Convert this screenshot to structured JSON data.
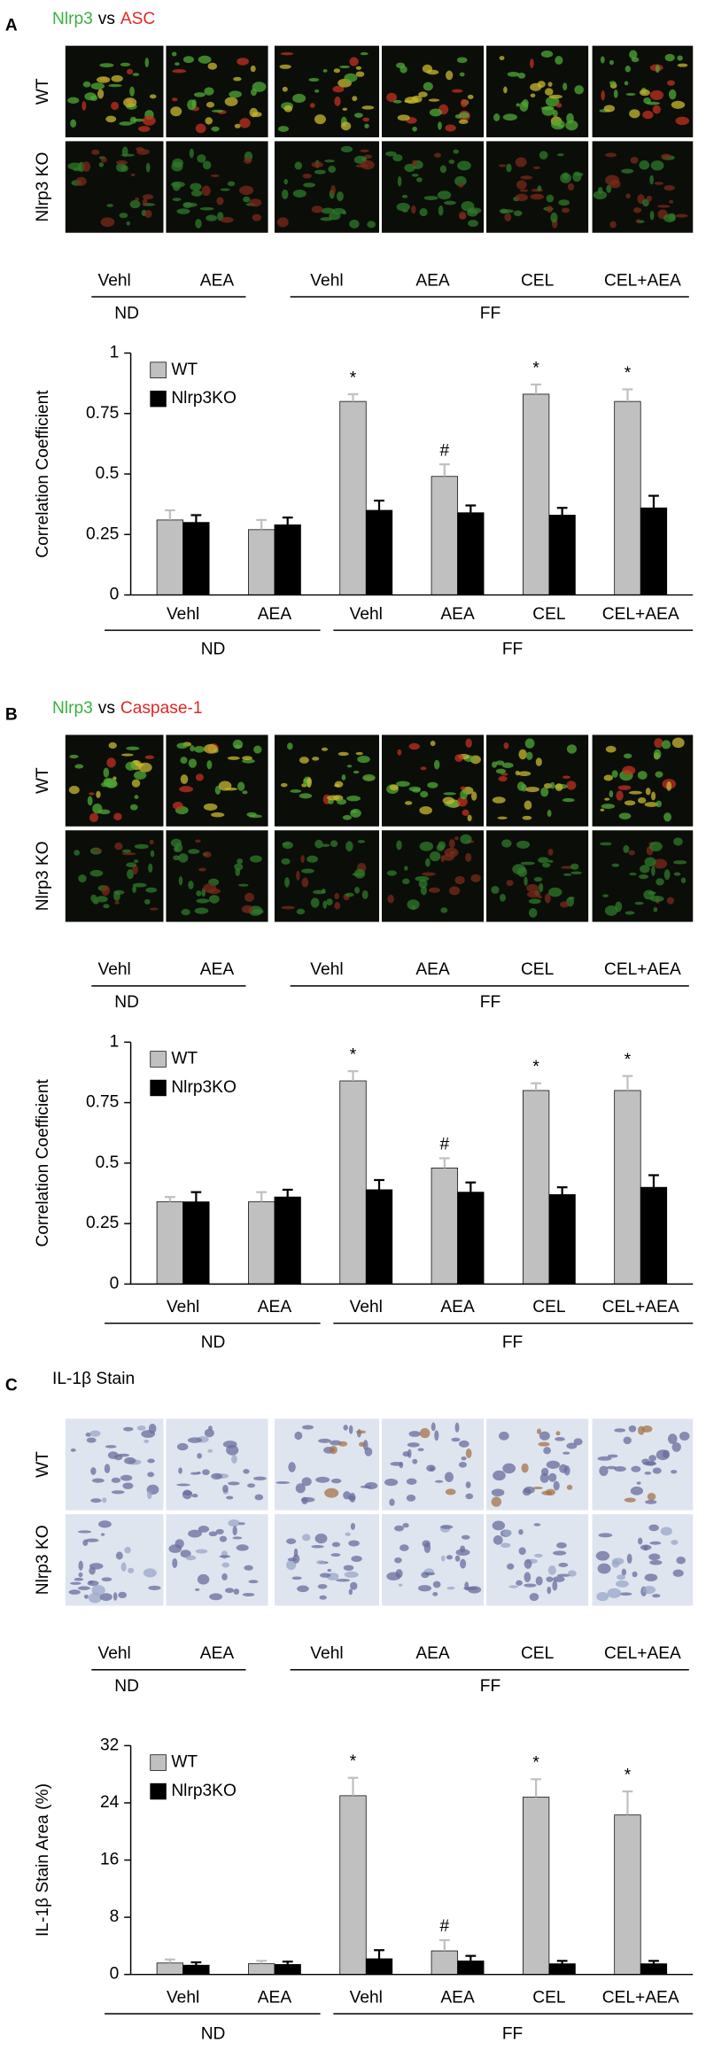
{
  "panels": [
    {
      "letter": "A",
      "title": [
        "Nlrp3",
        "vs",
        "ASC"
      ],
      "title_colors": [
        "#3cb043",
        "#000000",
        "#e32626"
      ],
      "row_labels": [
        "WT",
        "Nlrp3 KO"
      ],
      "image_labels": [
        "Vehl",
        "AEA",
        "Vehl",
        "AEA",
        "CEL",
        "CEL+AEA"
      ],
      "groups": [
        "ND",
        "FF"
      ]
    },
    {
      "letter": "B",
      "title": [
        "Nlrp3",
        "vs",
        "Caspase-1"
      ],
      "title_colors": [
        "#3cb043",
        "#000000",
        "#e32626"
      ],
      "row_labels": [
        "WT",
        "Nlrp3 KO"
      ],
      "image_labels": [
        "Vehl",
        "AEA",
        "Vehl",
        "AEA",
        "CEL",
        "CEL+AEA"
      ],
      "groups": [
        "ND",
        "FF"
      ]
    },
    {
      "letter": "C",
      "title": [
        "IL-1β Stain"
      ],
      "title_colors": [
        "#000000"
      ],
      "row_labels": [
        "WT",
        "Nlrp3 KO"
      ],
      "image_labels": [
        "Vehl",
        "AEA",
        "Vehl",
        "AEA",
        "CEL",
        "CEL+AEA"
      ],
      "groups": [
        "ND",
        "FF"
      ]
    }
  ],
  "chart_data": [
    {
      "type": "bar",
      "ylabel": "Correlation Coefficient",
      "categories": [
        "Vehl",
        "AEA",
        "Vehl",
        "AEA",
        "CEL",
        "CEL+AEA"
      ],
      "groups": [
        "ND",
        "FF"
      ],
      "series": [
        {
          "name": "WT",
          "color": "#c0c0c0",
          "values": [
            0.31,
            0.27,
            0.8,
            0.49,
            0.83,
            0.8
          ],
          "errors": [
            0.04,
            0.04,
            0.03,
            0.05,
            0.04,
            0.05
          ],
          "markers": [
            null,
            null,
            "*",
            "#",
            "*",
            "*"
          ]
        },
        {
          "name": "Nlrp3KO",
          "color": "#000000",
          "values": [
            0.3,
            0.29,
            0.35,
            0.34,
            0.33,
            0.36
          ],
          "errors": [
            0.03,
            0.03,
            0.04,
            0.03,
            0.03,
            0.05
          ]
        }
      ],
      "ylim": [
        0,
        1
      ],
      "yticks": [
        0,
        0.25,
        0.5,
        0.75,
        1
      ],
      "legend": "upper left"
    },
    {
      "type": "bar",
      "ylabel": "Correlation Coefficient",
      "categories": [
        "Vehl",
        "AEA",
        "Vehl",
        "AEA",
        "CEL",
        "CEL+AEA"
      ],
      "groups": [
        "ND",
        "FF"
      ],
      "series": [
        {
          "name": "WT",
          "color": "#c0c0c0",
          "values": [
            0.34,
            0.34,
            0.84,
            0.48,
            0.8,
            0.8
          ],
          "errors": [
            0.02,
            0.04,
            0.04,
            0.04,
            0.03,
            0.06
          ],
          "markers": [
            null,
            null,
            "*",
            "#",
            "*",
            "*"
          ]
        },
        {
          "name": "Nlrp3KO",
          "color": "#000000",
          "values": [
            0.34,
            0.36,
            0.39,
            0.38,
            0.37,
            0.4
          ],
          "errors": [
            0.04,
            0.03,
            0.04,
            0.04,
            0.03,
            0.05
          ]
        }
      ],
      "ylim": [
        0,
        1
      ],
      "yticks": [
        0,
        0.25,
        0.5,
        0.75,
        1
      ],
      "legend": "upper left"
    },
    {
      "type": "bar",
      "ylabel": "IL-1β Stain Area (%)",
      "categories": [
        "Vehl",
        "AEA",
        "Vehl",
        "AEA",
        "CEL",
        "CEL+AEA"
      ],
      "groups": [
        "ND",
        "FF"
      ],
      "series": [
        {
          "name": "WT",
          "color": "#c0c0c0",
          "values": [
            1.6,
            1.5,
            25,
            3.3,
            24.8,
            22.3
          ],
          "errors": [
            0.5,
            0.4,
            2.5,
            1.5,
            2.5,
            3.3
          ],
          "markers": [
            null,
            null,
            "*",
            "#",
            "*",
            "*"
          ]
        },
        {
          "name": "Nlrp3KO",
          "color": "#000000",
          "values": [
            1.3,
            1.4,
            2.2,
            1.9,
            1.5,
            1.5
          ],
          "errors": [
            0.4,
            0.4,
            1.2,
            0.7,
            0.4,
            0.4
          ]
        }
      ],
      "ylim": [
        0,
        32
      ],
      "yticks": [
        0,
        8,
        16,
        24,
        32
      ],
      "legend": "upper left"
    }
  ]
}
